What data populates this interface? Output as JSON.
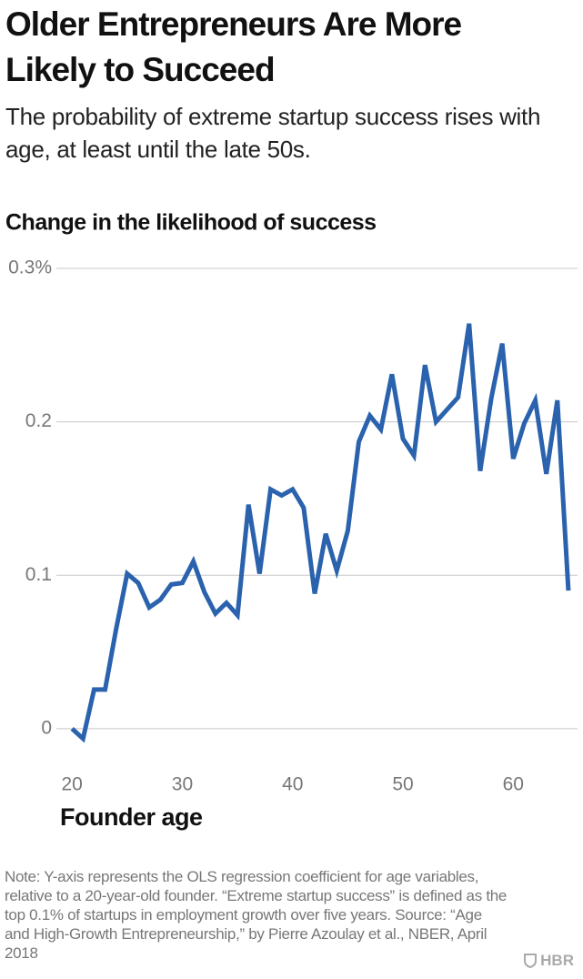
{
  "chart_data": {
    "type": "line",
    "title": "Older Entrepreneurs Are More Likely to Succeed",
    "subtitle": "The probability of extreme startup success rises with age, at least until the late 50s.",
    "y_label": "Change in the likelihood of success",
    "x_label": "Founder age",
    "note": "Note: Y-axis represents the OLS regression coefficient for age variables, relative to a 20-year-old founder. “Extreme startup success” is defined as the top 0.1% of startups in employment growth over five years. Source: “Age and High-Growth Entrepreneurship,” by Pierre Azoulay et al., NBER, April 2018",
    "brand": "HBR",
    "color": "#2a62ad",
    "x": [
      20,
      21,
      22,
      23,
      24,
      25,
      26,
      27,
      28,
      29,
      30,
      31,
      32,
      33,
      34,
      35,
      36,
      37,
      38,
      39,
      40,
      41,
      42,
      43,
      44,
      45,
      46,
      47,
      48,
      49,
      50,
      51,
      52,
      53,
      54,
      55,
      56,
      57,
      58,
      59,
      60,
      61,
      62,
      63,
      64,
      65
    ],
    "values": [
      0,
      -0.0065,
      0.0255,
      0.0255,
      0.065,
      0.101,
      0.095,
      0.079,
      0.084,
      0.094,
      0.095,
      0.109,
      0.089,
      0.075,
      0.082,
      0.074,
      0.146,
      0.101,
      0.156,
      0.152,
      0.156,
      0.144,
      0.088,
      0.127,
      0.103,
      0.129,
      0.187,
      0.204,
      0.195,
      0.231,
      0.189,
      0.178,
      0.237,
      0.2,
      0.208,
      0.216,
      0.264,
      0.168,
      0.215,
      0.251,
      0.176,
      0.199,
      0.214,
      0.166,
      0.214,
      0.09
    ],
    "xlim": [
      18.5,
      65.5
    ],
    "xticks": [
      20,
      30,
      40,
      50,
      60
    ],
    "ylim": [
      -0.025,
      0.3
    ],
    "yticks": [
      0,
      0.1,
      0.2,
      {
        "value": 0.3,
        "label": "0.3%"
      }
    ],
    "grid": true
  }
}
